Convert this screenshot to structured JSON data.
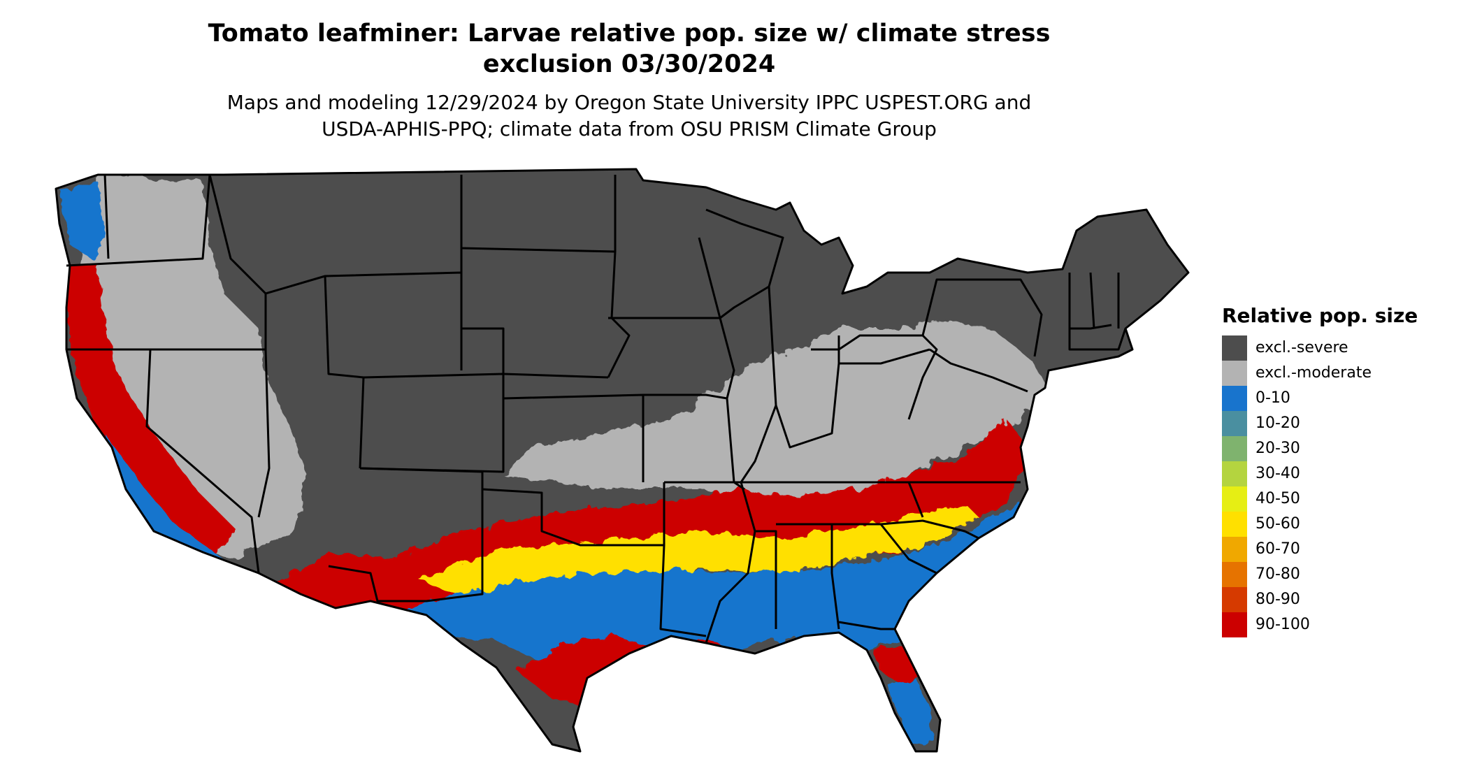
{
  "title": {
    "line1": "Tomato leafminer: Larvae relative pop. size w/ climate stress",
    "line2": "exclusion 03/30/2024"
  },
  "subtitle": {
    "line1": "Maps and modeling 12/29/2024 by Oregon State University IPPC USPEST.ORG and",
    "line2": "USDA-APHIS-PPQ; climate data from OSU PRISM Climate Group"
  },
  "legend": {
    "title": "Relative pop. size",
    "items": [
      {
        "label": "excl.-severe",
        "color": "#4d4d4d"
      },
      {
        "label": "excl.-moderate",
        "color": "#b3b3b3"
      },
      {
        "label": "0-10",
        "color": "#1874cd"
      },
      {
        "label": "10-20",
        "color": "#4a8fa0"
      },
      {
        "label": "20-30",
        "color": "#7fb36e"
      },
      {
        "label": "30-40",
        "color": "#b4d43f"
      },
      {
        "label": "40-50",
        "color": "#e6ee14"
      },
      {
        "label": "50-60",
        "color": "#ffe000"
      },
      {
        "label": "60-70",
        "color": "#f0a800"
      },
      {
        "label": "70-80",
        "color": "#e67300"
      },
      {
        "label": "80-90",
        "color": "#d63a00"
      },
      {
        "label": "90-100",
        "color": "#cc0000"
      }
    ]
  },
  "map": {
    "region": "Contiguous United States",
    "border_color": "#000000",
    "background": "#ffffff"
  }
}
